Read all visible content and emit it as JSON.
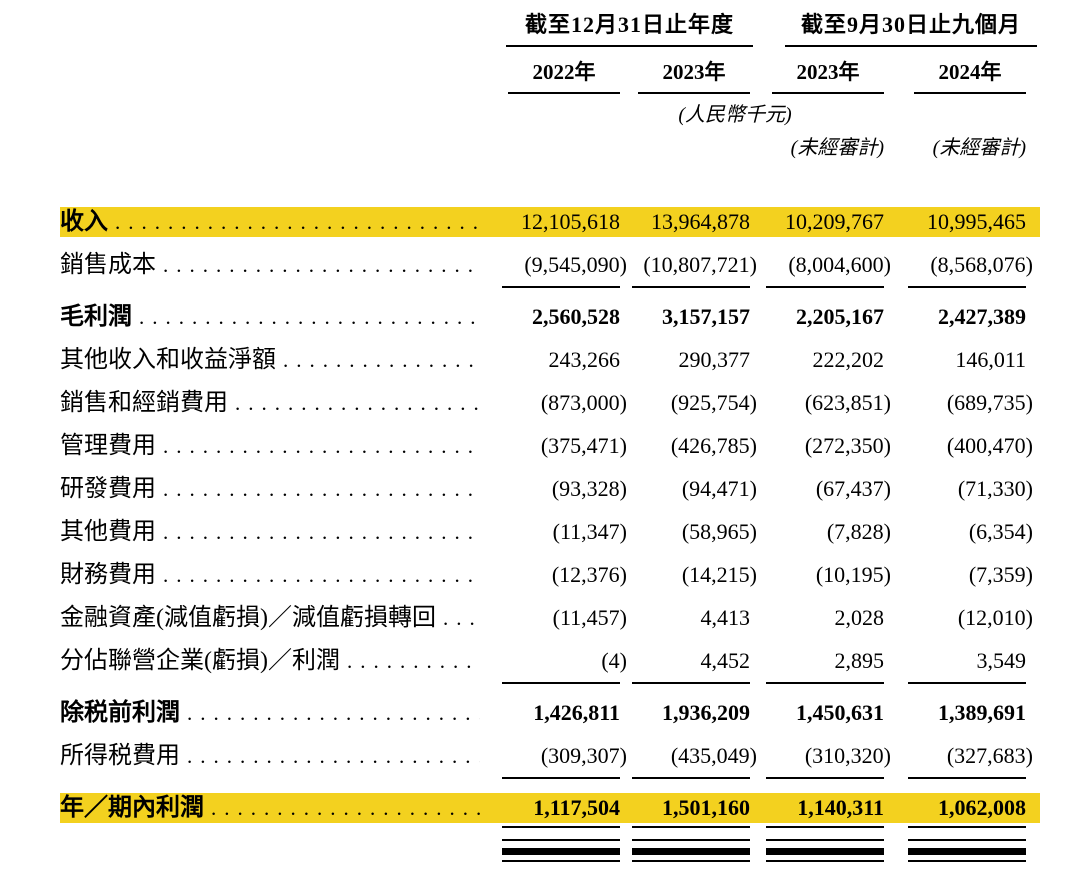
{
  "table": {
    "highlight_color": "#F3D11F",
    "col_groups": [
      {
        "label": "截至12月31日止年度",
        "years": [
          "2022年",
          "2023年"
        ]
      },
      {
        "label": "截至9月30日止九個月",
        "years": [
          "2023年",
          "2024年"
        ]
      }
    ],
    "unit_note": "(人民幣千元)",
    "unaudited_label": "(未經審計)",
    "rows": [
      {
        "label": "收入",
        "values": [
          "12,105,618",
          "13,964,878",
          "10,209,767",
          "10,995,465"
        ],
        "highlight": true,
        "bold_label": true
      },
      {
        "label": "銷售成本",
        "values": [
          "(9,545,090)",
          "(10,807,721)",
          "(8,004,600)",
          "(8,568,076)"
        ],
        "rule_after": true
      },
      {
        "label": "毛利潤",
        "values": [
          "2,560,528",
          "3,157,157",
          "2,205,167",
          "2,427,389"
        ],
        "bold_label": true,
        "bold_values": true
      },
      {
        "label": "其他收入和收益淨額",
        "values": [
          "243,266",
          "290,377",
          "222,202",
          "146,011"
        ]
      },
      {
        "label": "銷售和經銷費用",
        "values": [
          "(873,000)",
          "(925,754)",
          "(623,851)",
          "(689,735)"
        ]
      },
      {
        "label": "管理費用",
        "values": [
          "(375,471)",
          "(426,785)",
          "(272,350)",
          "(400,470)"
        ]
      },
      {
        "label": "研發費用",
        "values": [
          "(93,328)",
          "(94,471)",
          "(67,437)",
          "(71,330)"
        ]
      },
      {
        "label": "其他費用",
        "values": [
          "(11,347)",
          "(58,965)",
          "(7,828)",
          "(6,354)"
        ]
      },
      {
        "label": "財務費用",
        "values": [
          "(12,376)",
          "(14,215)",
          "(10,195)",
          "(7,359)"
        ]
      },
      {
        "label": "金融資產(減值虧損)／減值虧損轉回",
        "values": [
          "(11,457)",
          "4,413",
          "2,028",
          "(12,010)"
        ]
      },
      {
        "label": "分佔聯營企業(虧損)／利潤",
        "values": [
          "(4)",
          "4,452",
          "2,895",
          "3,549"
        ],
        "rule_after": true
      },
      {
        "label": "除税前利潤",
        "values": [
          "1,426,811",
          "1,936,209",
          "1,450,631",
          "1,389,691"
        ],
        "bold_label": true,
        "bold_values": true
      },
      {
        "label": "所得税費用",
        "values": [
          "(309,307)",
          "(435,049)",
          "(310,320)",
          "(327,683)"
        ],
        "rule_after": true
      },
      {
        "label": "年／期內利潤",
        "values": [
          "1,117,504",
          "1,501,160",
          "1,140,311",
          "1,062,008"
        ],
        "highlight": true,
        "bold_label": true,
        "bold_values": true,
        "double_rule_after": true
      }
    ]
  }
}
